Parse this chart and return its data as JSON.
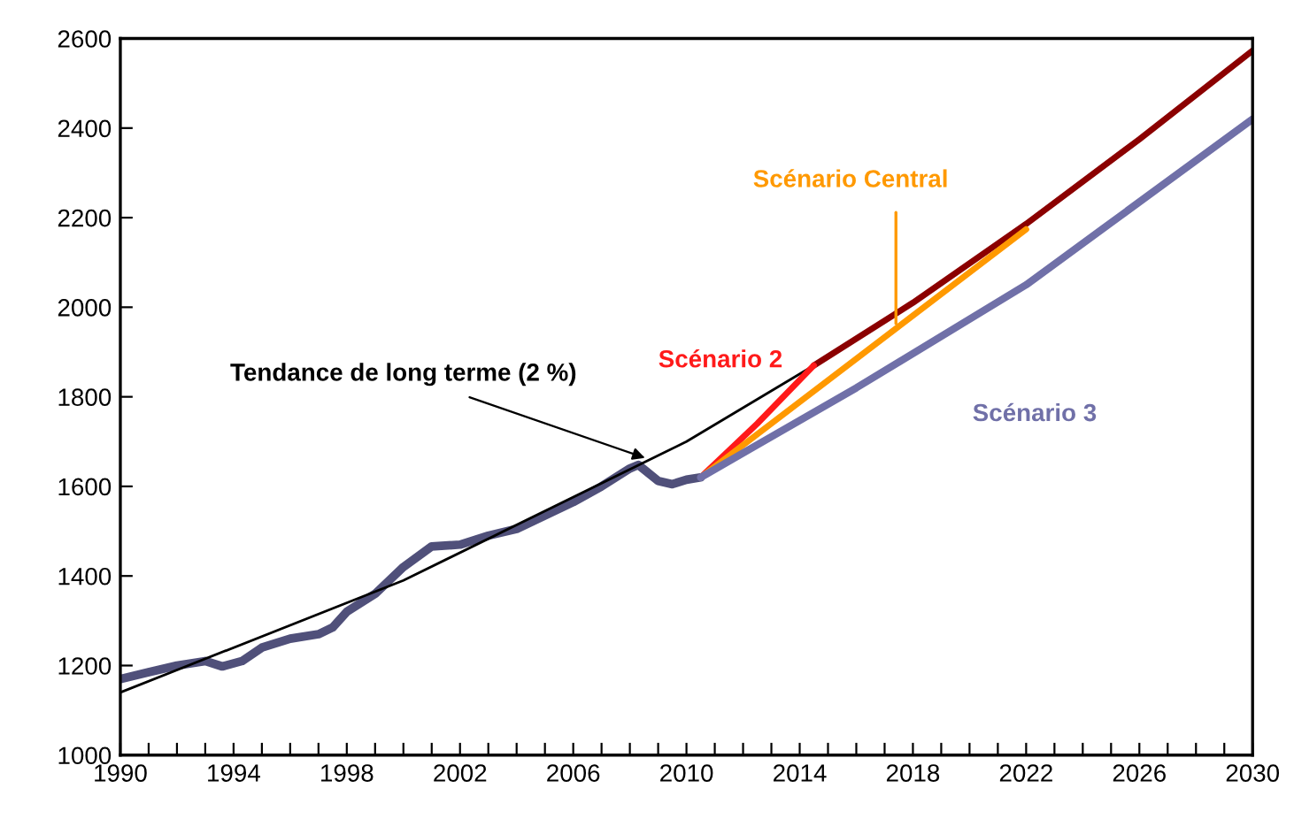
{
  "chart_data": {
    "type": "line",
    "series": [
      {
        "color": "#50507a",
        "x": [
          1990,
          1991,
          1992,
          1993,
          1993.6,
          1994.3,
          1995,
          1996,
          1997,
          1997.5,
          1998,
          1999,
          2000,
          2001,
          2002,
          2003,
          2004,
          2005,
          2006,
          2007,
          2008,
          2008.3,
          2009,
          2009.5,
          2010,
          2010.5
        ],
        "values": [
          1170,
          1185,
          1200,
          1210,
          1198,
          1210,
          1240,
          1260,
          1270,
          1285,
          1320,
          1360,
          1420,
          1466,
          1470,
          1490,
          1505,
          1535,
          1565,
          1600,
          1640,
          1648,
          1612,
          1605,
          1615,
          1620
        ]
      },
      {
        "color": "#000000",
        "x": [
          1990,
          2000,
          2010,
          2014.5
        ],
        "values": [
          1140,
          1390,
          1700,
          1870
        ]
      },
      {
        "color": "#8b0000",
        "x": [
          2014.5,
          2018,
          2022,
          2026,
          2030
        ],
        "values": [
          1870,
          2010,
          2186,
          2375,
          2573
        ]
      },
      {
        "name": "Scénario 2",
        "color": "#ff1a1a",
        "x": [
          2010.5,
          2012.5,
          2014.5
        ],
        "values": [
          1620,
          1740,
          1870
        ]
      },
      {
        "name": "Scénario Central",
        "color": "#ff9900",
        "x": [
          2010.5,
          2022
        ],
        "values": [
          1620,
          2174
        ]
      },
      {
        "name": "Scénario 3",
        "color": "#7070a8",
        "x": [
          2010.5,
          2016,
          2022,
          2030
        ],
        "values": [
          1620,
          1820,
          2050,
          2420
        ]
      }
    ],
    "annotations": [
      {
        "text": "Tendance de long terme (2 %)",
        "x": 2008.7,
        "y": 1660
      }
    ],
    "xlim": [
      1990,
      2030
    ],
    "ylim": [
      1000,
      2600
    ],
    "xticks": [
      1990,
      {
        "value": 1991,
        "label": null
      },
      {
        "value": 1992,
        "label": null
      },
      {
        "value": 1993,
        "label": null
      },
      1994,
      {
        "value": 1995,
        "label": null
      },
      {
        "value": 1996,
        "label": null
      },
      {
        "value": 1997,
        "label": null
      },
      1998,
      {
        "value": 1999,
        "label": null
      },
      {
        "value": 2000,
        "label": null
      },
      {
        "value": 2001,
        "label": null
      },
      2002,
      {
        "value": 2003,
        "label": null
      },
      {
        "value": 2004,
        "label": null
      },
      {
        "value": 2005,
        "label": null
      },
      2006,
      {
        "value": 2007,
        "label": null
      },
      {
        "value": 2008,
        "label": null
      },
      {
        "value": 2009,
        "label": null
      },
      2010,
      {
        "value": 2011,
        "label": null
      },
      {
        "value": 2012,
        "label": null
      },
      {
        "value": 2013,
        "label": null
      },
      2014,
      {
        "value": 2015,
        "label": null
      },
      {
        "value": 2016,
        "label": null
      },
      {
        "value": 2017,
        "label": null
      },
      2018,
      {
        "value": 2019,
        "label": null
      },
      {
        "value": 2020,
        "label": null
      },
      {
        "value": 2021,
        "label": null
      },
      2022,
      {
        "value": 2023,
        "label": null
      },
      {
        "value": 2024,
        "label": null
      },
      {
        "value": 2025,
        "label": null
      },
      2026,
      {
        "value": 2027,
        "label": null
      },
      {
        "value": 2028,
        "label": null
      },
      {
        "value": 2029,
        "label": null
      },
      2030
    ],
    "yticks": [
      1000,
      1200,
      1400,
      1600,
      1800,
      2000,
      2200,
      2400,
      2600
    ],
    "grid": false,
    "legend": false,
    "marker": "none",
    "line_style": "solid"
  }
}
